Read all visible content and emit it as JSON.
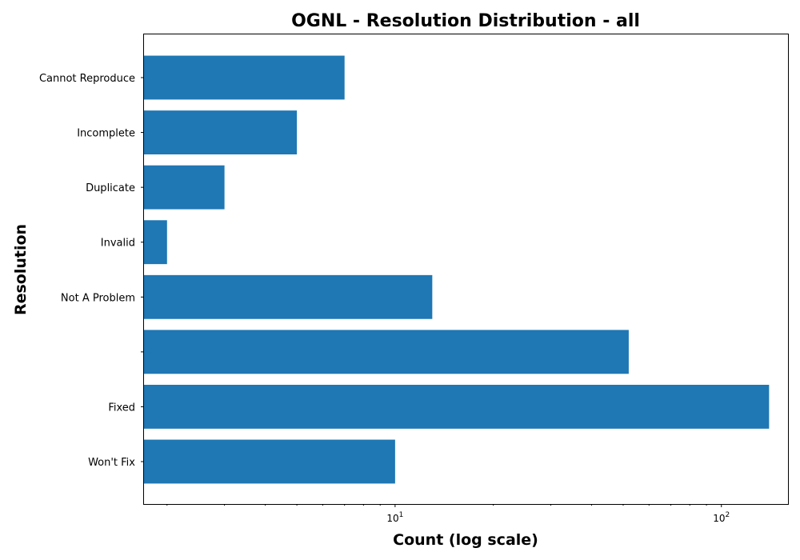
{
  "chart_data": {
    "type": "bar",
    "orientation": "horizontal",
    "title": "OGNL - Resolution Distribution - all",
    "xlabel": "Count (log scale)",
    "ylabel": "Resolution",
    "x_scale": "log",
    "xlim": [
      1.7,
      160
    ],
    "categories": [
      "Cannot Reproduce",
      "Incomplete",
      "Duplicate",
      "Invalid",
      "Not A Problem",
      "",
      "Fixed",
      "Won't Fix"
    ],
    "values": [
      7,
      5,
      3,
      2,
      13,
      52,
      140,
      10
    ],
    "x_ticks": [
      {
        "base": "10",
        "exponent": "1",
        "value": 10
      },
      {
        "base": "10",
        "exponent": "2",
        "value": 100
      }
    ],
    "grid": false,
    "colors": {
      "bar": "#1f77b4",
      "axis": "#000000"
    }
  }
}
